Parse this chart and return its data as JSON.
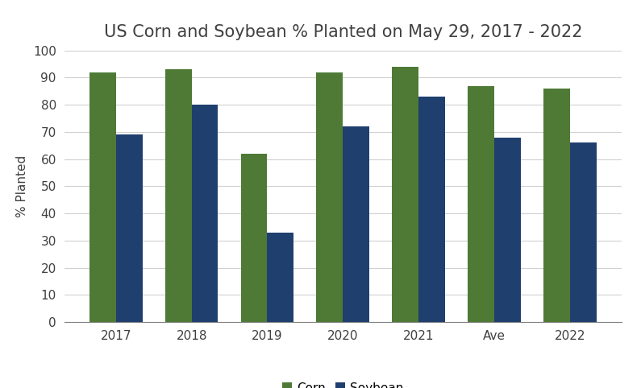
{
  "title": "US Corn and Soybean % Planted on May 29, 2017 - 2022",
  "categories": [
    "2017",
    "2018",
    "2019",
    "2020",
    "2021",
    "Ave",
    "2022"
  ],
  "corn_values": [
    92,
    93,
    62,
    92,
    94,
    87,
    86
  ],
  "soybean_values": [
    69,
    80,
    33,
    72,
    83,
    68,
    66
  ],
  "corn_color": "#4e7a35",
  "soybean_color": "#1f3f6e",
  "ylabel": "% Planted",
  "ylim": [
    0,
    100
  ],
  "yticks": [
    0,
    10,
    20,
    30,
    40,
    50,
    60,
    70,
    80,
    90,
    100
  ],
  "legend_labels": [
    "Corn",
    "Soybean"
  ],
  "bar_width": 0.35,
  "background_color": "#ffffff",
  "grid_color": "#d0d0d0",
  "title_fontsize": 15,
  "axis_fontsize": 11,
  "tick_fontsize": 11,
  "legend_fontsize": 11
}
